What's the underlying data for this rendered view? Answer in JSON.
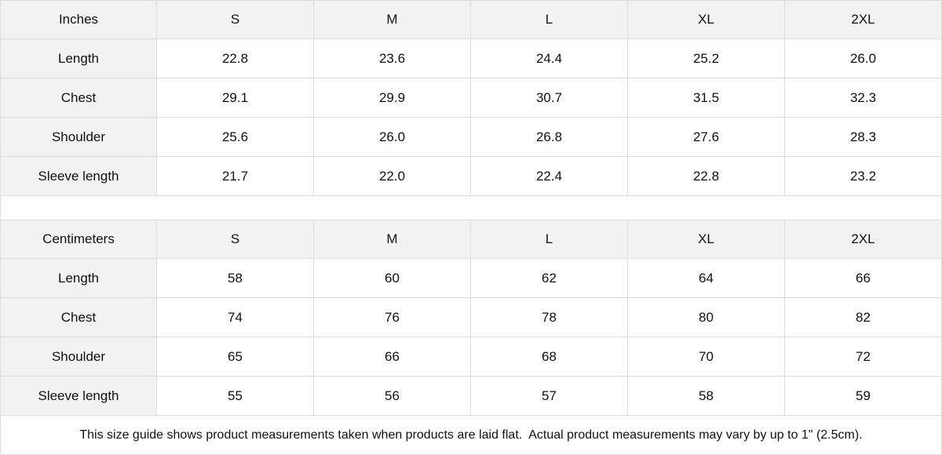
{
  "tables": [
    {
      "unit": "Inches",
      "sizes": [
        "S",
        "M",
        "L",
        "XL",
        "2XL"
      ],
      "rows": [
        {
          "label": "Length",
          "values": [
            "22.8",
            "23.6",
            "24.4",
            "25.2",
            "26.0"
          ]
        },
        {
          "label": "Chest",
          "values": [
            "29.1",
            "29.9",
            "30.7",
            "31.5",
            "32.3"
          ]
        },
        {
          "label": "Shoulder",
          "values": [
            "25.6",
            "26.0",
            "26.8",
            "27.6",
            "28.3"
          ]
        },
        {
          "label": "Sleeve length",
          "values": [
            "21.7",
            "22.0",
            "22.4",
            "22.8",
            "23.2"
          ]
        }
      ]
    },
    {
      "unit": "Centimeters",
      "sizes": [
        "S",
        "M",
        "L",
        "XL",
        "2XL"
      ],
      "rows": [
        {
          "label": "Length",
          "values": [
            "58",
            "60",
            "62",
            "64",
            "66"
          ]
        },
        {
          "label": "Chest",
          "values": [
            "74",
            "76",
            "78",
            "80",
            "82"
          ]
        },
        {
          "label": "Shoulder",
          "values": [
            "65",
            "66",
            "68",
            "70",
            "72"
          ]
        },
        {
          "label": "Sleeve length",
          "values": [
            "55",
            "56",
            "57",
            "58",
            "59"
          ]
        }
      ]
    }
  ],
  "note": "This size guide shows product measurements taken when products are laid flat.  Actual product measurements may vary by up to 1\" (2.5cm).",
  "colors": {
    "header_bg": "#f2f2f2",
    "border": "#dcdcdc"
  }
}
